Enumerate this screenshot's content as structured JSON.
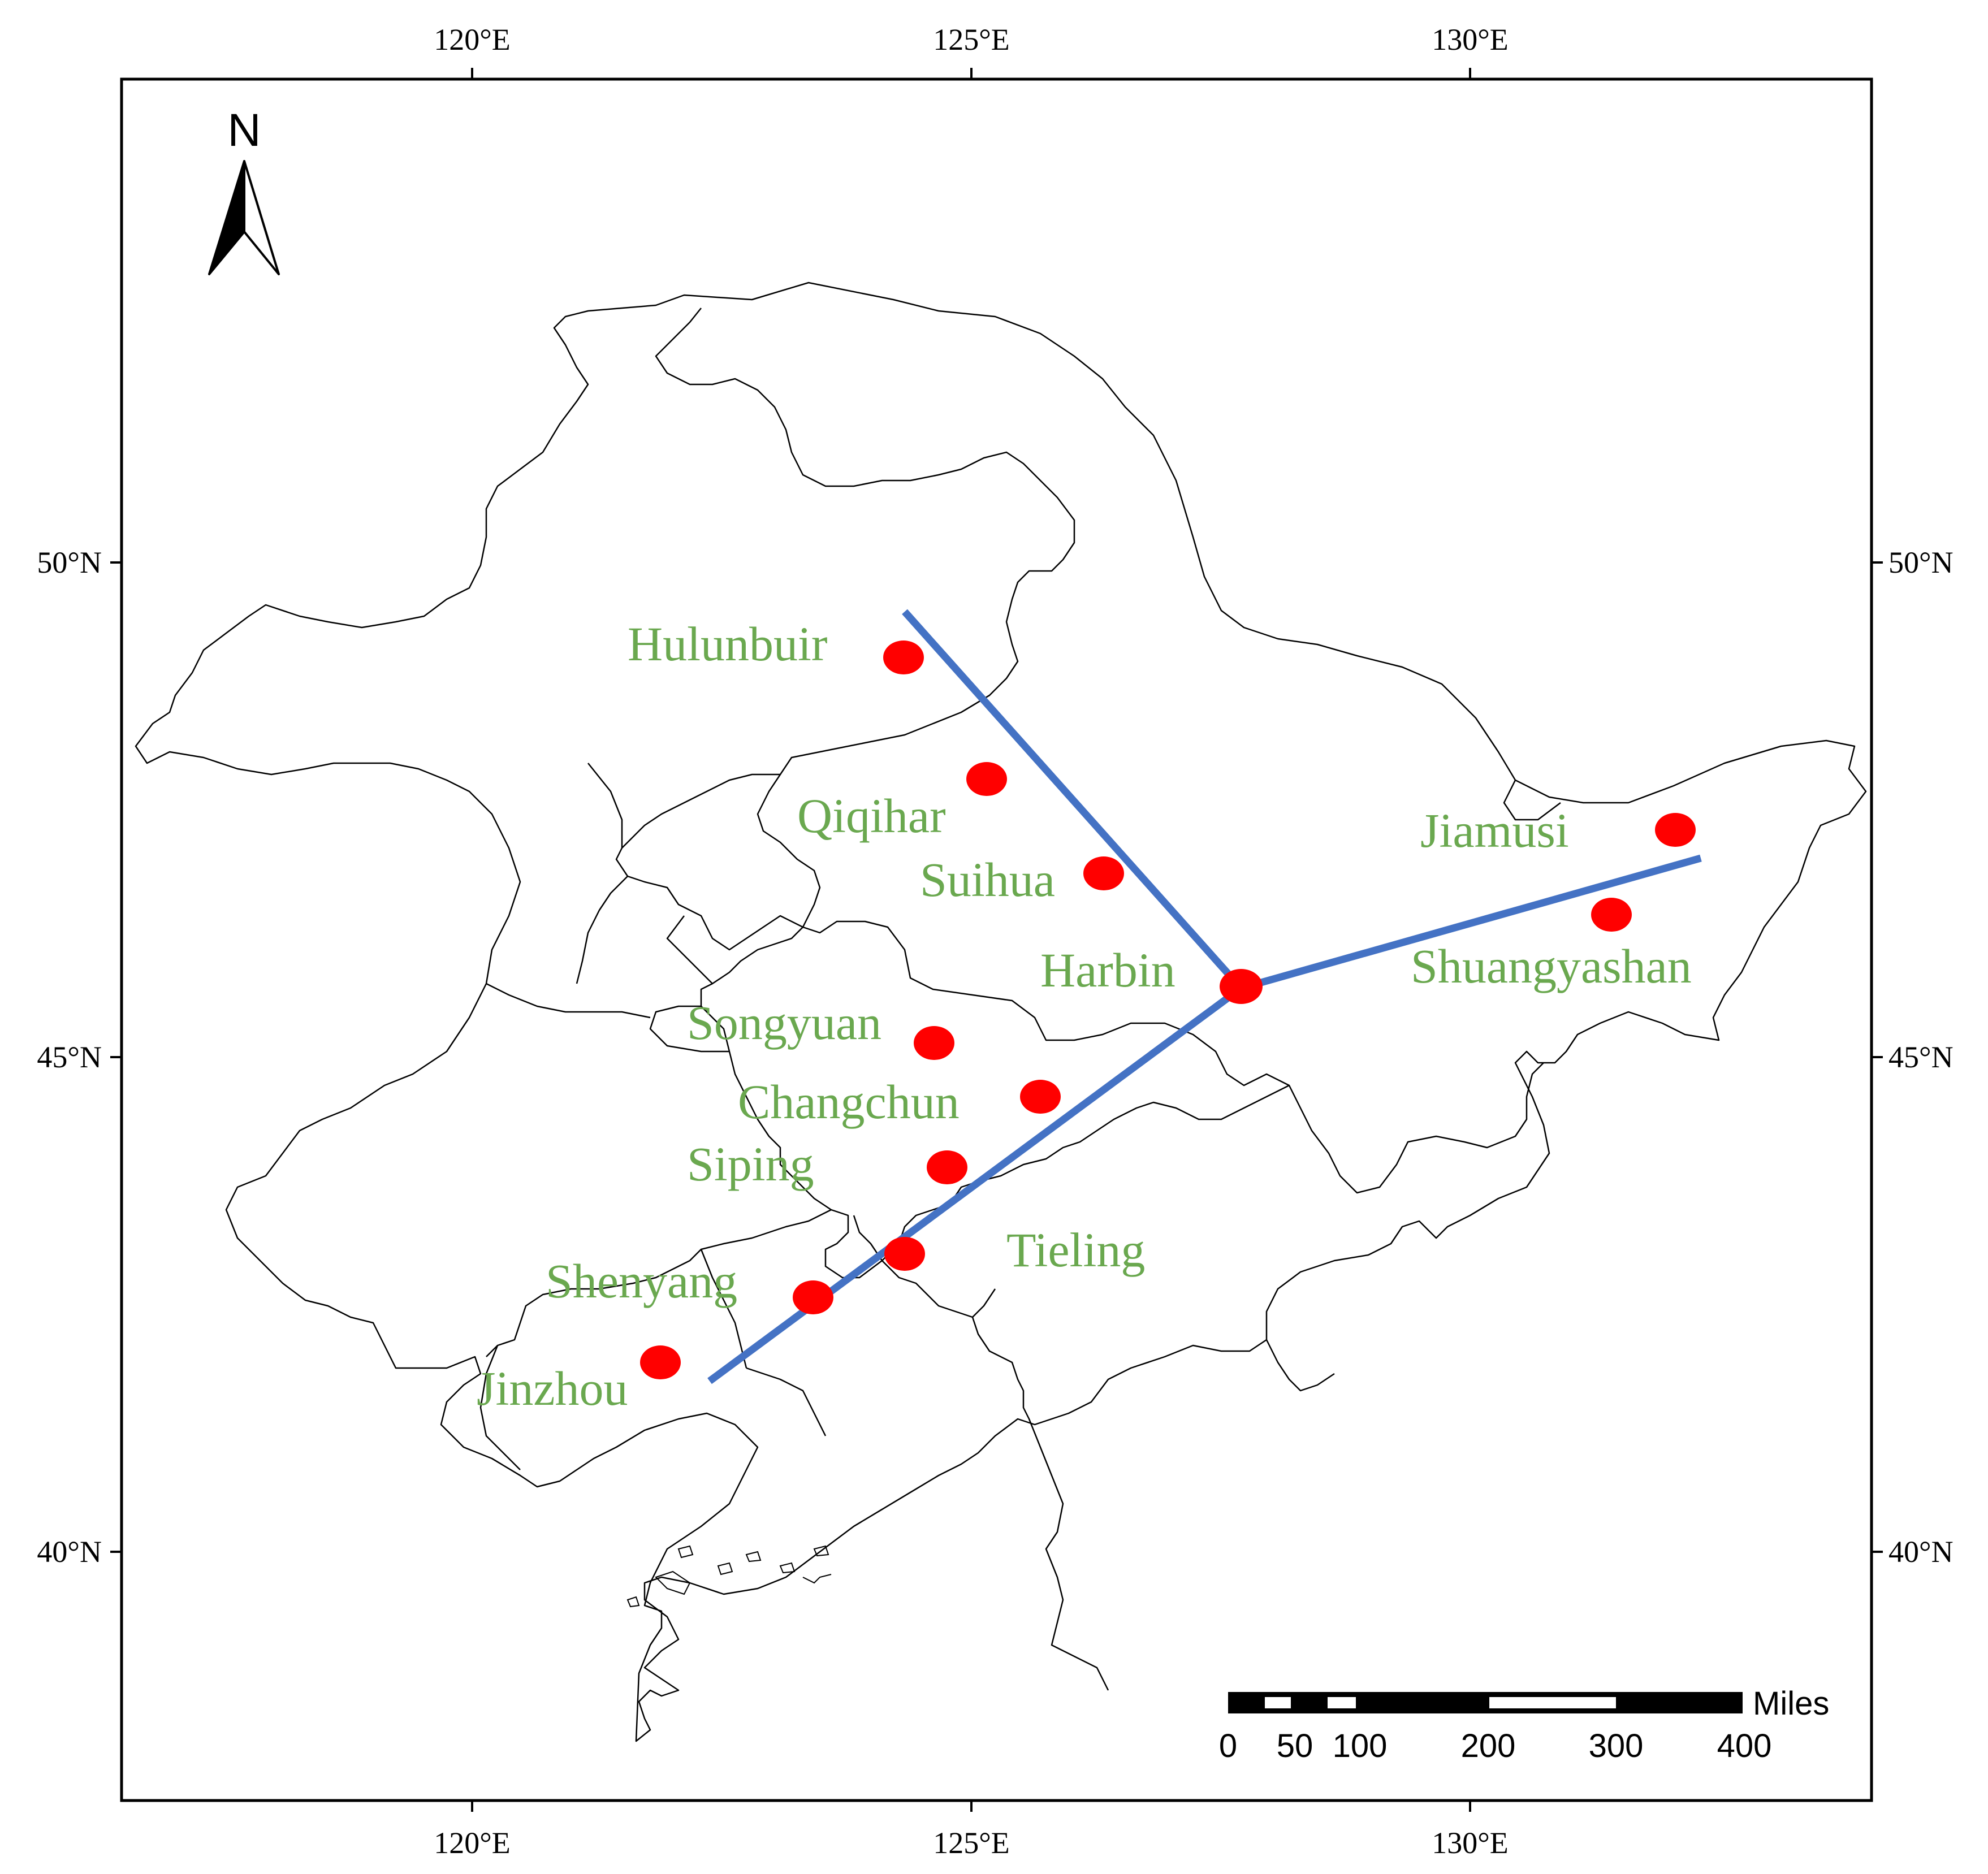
{
  "north_arrow": {
    "label": "N"
  },
  "axes": {
    "top_ticks": [
      "120°E",
      "125°E",
      "130°E"
    ],
    "bottom_ticks": [
      "120°E",
      "125°E",
      "130°E"
    ],
    "left_ticks": [
      "50°N",
      "45°N",
      "40°N"
    ],
    "right_ticks": [
      "50°N",
      "45°N",
      "40°N"
    ]
  },
  "cities": [
    {
      "name": "Hulunbuir"
    },
    {
      "name": "Qiqihar"
    },
    {
      "name": "Suihua"
    },
    {
      "name": "Harbin"
    },
    {
      "name": "Jiamusi"
    },
    {
      "name": "Shuangyashan"
    },
    {
      "name": "Songyuan"
    },
    {
      "name": "Changchun"
    },
    {
      "name": "Siping"
    },
    {
      "name": "Tieling"
    },
    {
      "name": "Shenyang"
    },
    {
      "name": "Jinzhou"
    }
  ],
  "scale_bar": {
    "unit": "Miles",
    "labels": [
      "0",
      "50",
      "100",
      "200",
      "300",
      "400"
    ]
  },
  "colors": {
    "marker": "#ff0000",
    "route": "#4472c4",
    "label": "#6aa84f",
    "border": "#000000"
  }
}
